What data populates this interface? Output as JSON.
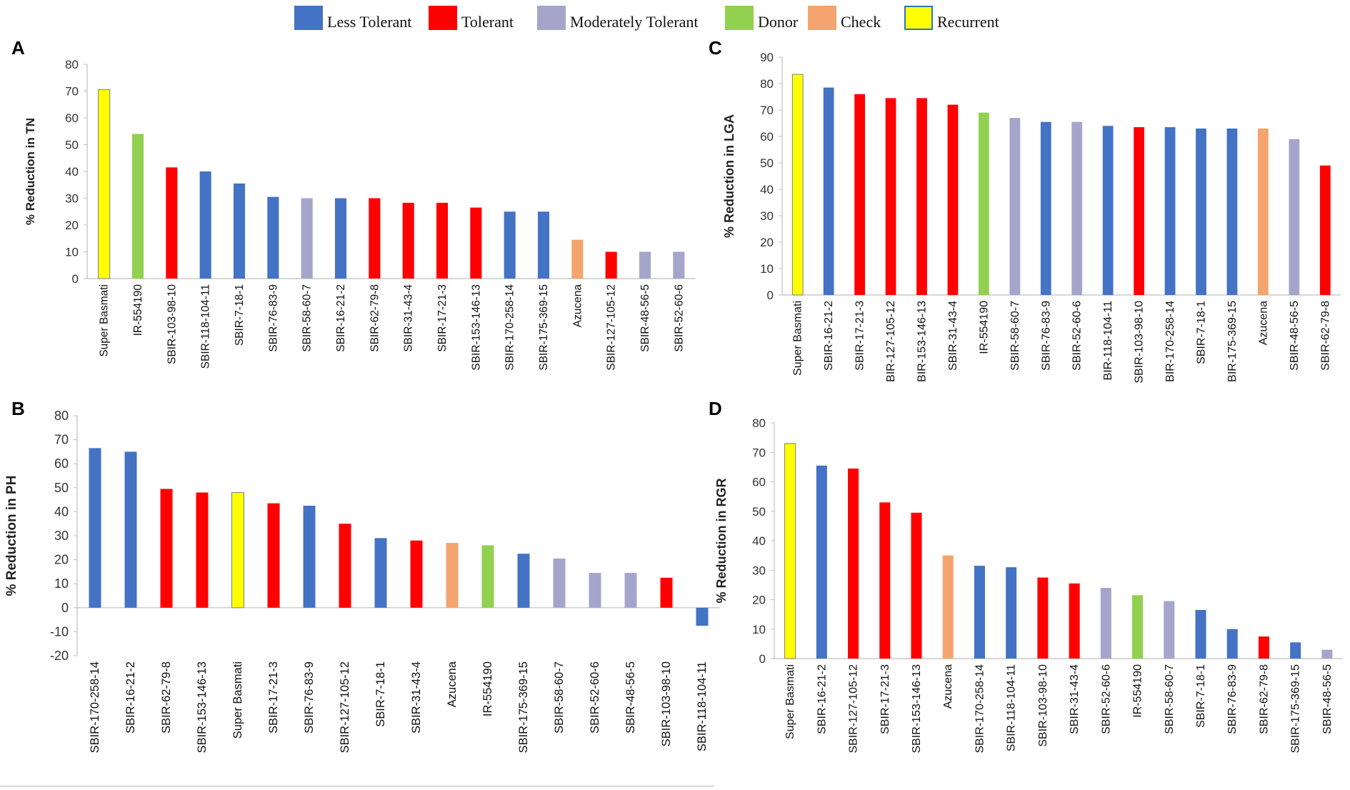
{
  "legend": [
    {
      "label": "Less Tolerant",
      "color": "#4472C4"
    },
    {
      "label": "Tolerant",
      "color": "#FF0000"
    },
    {
      "label": "Moderately Tolerant",
      "color": "#A5A5CC"
    },
    {
      "label": "Donor",
      "color": "#92D050"
    },
    {
      "label": "Check",
      "color": "#F4A46E"
    },
    {
      "label": "Recurrent",
      "color": "#FFFF00"
    }
  ],
  "chart_data": [
    {
      "panel": "A",
      "type": "bar",
      "ylabel": "% Reduction in TN",
      "ylim": [
        0,
        80
      ],
      "yticks": [
        0,
        10,
        20,
        30,
        40,
        50,
        60,
        70,
        80
      ],
      "categories": [
        "Super Basmati",
        "IR-554190",
        "SBIR-103-98-10",
        "SBIR-118-104-11",
        "SBIR-7-18-1",
        "SBIR-76-83-9",
        "SBIR-58-60-7",
        "SBIR-16-21-2",
        "SBIR-62-79-8",
        "SBIR-31-43-4",
        "SBIR-17-21-3",
        "SBIR-153-146-13",
        "SBIR-170-258-14",
        "SBIR-175-369-15",
        "Azucena",
        "SBIR-127-105-12",
        "SBIR-48-56-5",
        "SBIR-52-60-6"
      ],
      "values": [
        70.5,
        54,
        41.5,
        40,
        35.5,
        30.5,
        30,
        30,
        30,
        28.3,
        28.3,
        26.5,
        25,
        25,
        14.5,
        10,
        10,
        10
      ],
      "classes": [
        "Recurrent",
        "Donor",
        "Tolerant",
        "Less Tolerant",
        "Less Tolerant",
        "Less Tolerant",
        "Moderately Tolerant",
        "Less Tolerant",
        "Tolerant",
        "Tolerant",
        "Tolerant",
        "Tolerant",
        "Less Tolerant",
        "Less Tolerant",
        "Check",
        "Tolerant",
        "Moderately Tolerant",
        "Moderately Tolerant"
      ]
    },
    {
      "panel": "C",
      "type": "bar",
      "ylabel": "% Reduction in LGA",
      "ylim": [
        0,
        90
      ],
      "yticks": [
        0,
        10,
        20,
        30,
        40,
        50,
        60,
        70,
        80,
        90
      ],
      "categories": [
        "Super Basmati",
        "SBIR-16-21-2",
        "SBIR-17-21-3",
        "BIR-127-105-12",
        "BIR-153-146-13",
        "SBIR-31-43-4",
        "IR-554190",
        "SBIR-58-60-7",
        "SBIR-76-83-9",
        "SBIR-52-60-6",
        "BIR-118-104-11",
        "SBIR-103-98-10",
        "BIR-170-258-14",
        "SBIR-7-18-1",
        "BIR-175-369-15",
        "Azucena",
        "SBIR-48-56-5",
        "SBIR-62-79-8"
      ],
      "values": [
        83.5,
        78.5,
        76,
        74.5,
        74.5,
        72,
        69,
        67,
        65.5,
        65.5,
        64,
        63.5,
        63.5,
        63,
        63,
        63,
        59,
        49
      ],
      "classes": [
        "Recurrent",
        "Less Tolerant",
        "Tolerant",
        "Tolerant",
        "Tolerant",
        "Tolerant",
        "Donor",
        "Moderately Tolerant",
        "Less Tolerant",
        "Moderately Tolerant",
        "Less Tolerant",
        "Tolerant",
        "Less Tolerant",
        "Less Tolerant",
        "Less Tolerant",
        "Check",
        "Moderately Tolerant",
        "Tolerant"
      ]
    },
    {
      "panel": "B",
      "type": "bar",
      "ylabel": "% Reduction in PH",
      "ylim": [
        -20,
        80
      ],
      "yticks": [
        -20,
        -10,
        0,
        10,
        20,
        30,
        40,
        50,
        60,
        70,
        80
      ],
      "categories": [
        "SBIR-170-258-14",
        "SBIR-16-21-2",
        "SBIR-62-79-8",
        "SBIR-153-146-13",
        "Super Basmati",
        "SBIR-17-21-3",
        "SBIR-76-83-9",
        "SBIR-127-105-12",
        "SBIR-7-18-1",
        "SBIR-31-43-4",
        "Azucena",
        "IR-554190",
        "SBIR-175-369-15",
        "SBIR-58-60-7",
        "SBIR-52-60-6",
        "SBIR-48-56-5",
        "SBIR-103-98-10",
        "SBIR-118-104-11"
      ],
      "values": [
        66.5,
        65,
        49.5,
        48,
        48,
        43.5,
        42.5,
        35,
        29,
        28,
        27,
        26,
        22.5,
        20.5,
        14.5,
        14.5,
        12.5,
        -7.5
      ],
      "classes": [
        "Less Tolerant",
        "Less Tolerant",
        "Tolerant",
        "Tolerant",
        "Recurrent",
        "Tolerant",
        "Less Tolerant",
        "Tolerant",
        "Less Tolerant",
        "Tolerant",
        "Check",
        "Donor",
        "Less Tolerant",
        "Moderately Tolerant",
        "Moderately Tolerant",
        "Moderately Tolerant",
        "Tolerant",
        "Less Tolerant"
      ]
    },
    {
      "panel": "D",
      "type": "bar",
      "ylabel": "% Reduction in RGR",
      "ylim": [
        0,
        80
      ],
      "yticks": [
        0,
        10,
        20,
        30,
        40,
        50,
        60,
        70,
        80
      ],
      "categories": [
        "Super Basmati",
        "SBIR-16-21-2",
        "SBIR-127-105-12",
        "SBIR-17-21-3",
        "SBIR-153-146-13",
        "Azucena",
        "SBIR-170-258-14",
        "SBIR-118-104-11",
        "SBIR-103-98-10",
        "SBIR-31-43-4",
        "SBIR-52-60-6",
        "IR-554190",
        "SBIR-58-60-7",
        "SBIR-7-18-1",
        "SBIR-76-83-9",
        "SBIR-62-79-8",
        "SBIR-175-369-15",
        "SBIR-48-56-5"
      ],
      "values": [
        73,
        65.5,
        64.5,
        53,
        49.5,
        35,
        31.5,
        31,
        27.5,
        25.5,
        24,
        21.5,
        19.5,
        16.5,
        10,
        7.5,
        5.5,
        3
      ],
      "classes": [
        "Recurrent",
        "Less Tolerant",
        "Tolerant",
        "Tolerant",
        "Tolerant",
        "Check",
        "Less Tolerant",
        "Less Tolerant",
        "Tolerant",
        "Tolerant",
        "Moderately Tolerant",
        "Donor",
        "Moderately Tolerant",
        "Less Tolerant",
        "Less Tolerant",
        "Tolerant",
        "Less Tolerant",
        "Moderately Tolerant"
      ]
    }
  ]
}
